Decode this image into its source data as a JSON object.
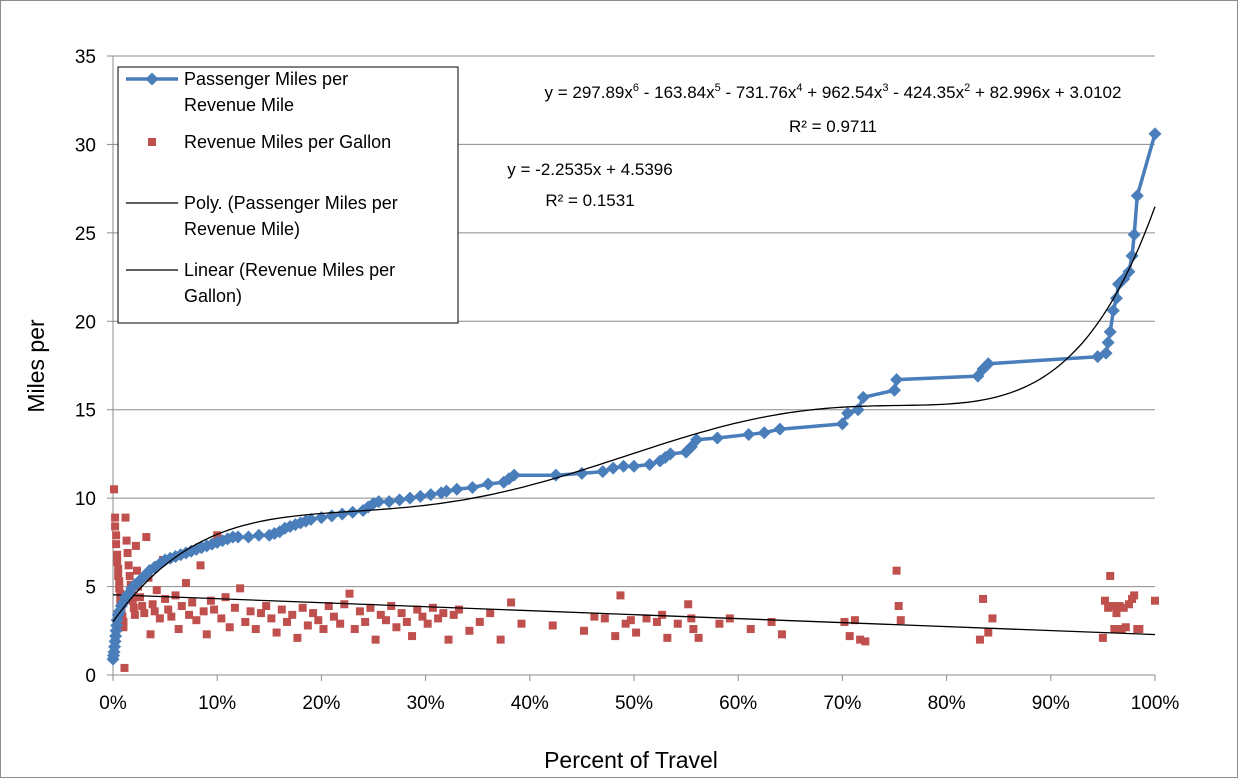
{
  "chart_data": {
    "type": "scatter",
    "title": "",
    "xlabel": "Percent of Travel",
    "ylabel": "Miles per",
    "xlim": [
      0,
      1
    ],
    "ylim": [
      0,
      35
    ],
    "x_ticks": [
      "0%",
      "10%",
      "20%",
      "30%",
      "40%",
      "50%",
      "60%",
      "70%",
      "80%",
      "90%",
      "100%"
    ],
    "y_ticks": [
      "0",
      "5",
      "10",
      "15",
      "20",
      "25",
      "30",
      "35"
    ],
    "grid": "horizontal",
    "legend_placement": "top-left",
    "legend": [
      {
        "lines": [
          "Passenger Miles per",
          "Revenue Mile"
        ],
        "marker": "diamond",
        "color": "#4a7ebb"
      },
      {
        "lines": [
          "Revenue Miles per Gallon"
        ],
        "marker": "square",
        "color": "#c0504d"
      },
      {
        "lines": [
          "Poly. (Passenger Miles per",
          "Revenue Mile)"
        ],
        "marker": "line",
        "color": "#000000"
      },
      {
        "lines": [
          "Linear (Revenue Miles per",
          "Gallon)"
        ],
        "marker": "line",
        "color": "#000000"
      }
    ],
    "annotations": {
      "poly_equation_parts": [
        {
          "t": "y = 297.89x"
        },
        {
          "t": "6",
          "sup": true
        },
        {
          "t": " - 163.84x"
        },
        {
          "t": "5",
          "sup": true
        },
        {
          "t": " - 731.76x"
        },
        {
          "t": "4",
          "sup": true
        },
        {
          "t": " + 962.54x"
        },
        {
          "t": "3",
          "sup": true
        },
        {
          "t": " - 424.35x"
        },
        {
          "t": "2",
          "sup": true
        },
        {
          "t": " + 82.996x + 3.0102"
        }
      ],
      "poly_r2": "R² = 0.9711",
      "linear_equation": "y = -2.2535x + 4.5396",
      "linear_r2": "R² = 0.1531"
    },
    "series": [
      {
        "name": "Passenger Miles per Revenue Mile",
        "type": "line-markers",
        "color": "#4a7ebb",
        "points": [
          [
            0.0,
            0.9
          ],
          [
            0.0005,
            1.1
          ],
          [
            0.001,
            1.3
          ],
          [
            0.0015,
            1.6
          ],
          [
            0.002,
            1.9
          ],
          [
            0.0025,
            2.2
          ],
          [
            0.003,
            2.5
          ],
          [
            0.0035,
            2.8
          ],
          [
            0.004,
            3.1
          ],
          [
            0.005,
            3.4
          ],
          [
            0.006,
            3.6
          ],
          [
            0.008,
            3.9
          ],
          [
            0.01,
            4.1
          ],
          [
            0.012,
            4.4
          ],
          [
            0.015,
            4.6
          ],
          [
            0.018,
            4.9
          ],
          [
            0.021,
            5.1
          ],
          [
            0.025,
            5.3
          ],
          [
            0.03,
            5.6
          ],
          [
            0.035,
            5.9
          ],
          [
            0.04,
            6.1
          ],
          [
            0.045,
            6.3
          ],
          [
            0.05,
            6.5
          ],
          [
            0.055,
            6.6
          ],
          [
            0.06,
            6.7
          ],
          [
            0.065,
            6.8
          ],
          [
            0.07,
            6.9
          ],
          [
            0.075,
            7.0
          ],
          [
            0.08,
            7.1
          ],
          [
            0.085,
            7.2
          ],
          [
            0.09,
            7.3
          ],
          [
            0.095,
            7.4
          ],
          [
            0.1,
            7.5
          ],
          [
            0.105,
            7.6
          ],
          [
            0.11,
            7.7
          ],
          [
            0.115,
            7.8
          ],
          [
            0.12,
            7.8
          ],
          [
            0.13,
            7.8
          ],
          [
            0.14,
            7.9
          ],
          [
            0.15,
            7.9
          ],
          [
            0.155,
            8.0
          ],
          [
            0.16,
            8.1
          ],
          [
            0.165,
            8.3
          ],
          [
            0.17,
            8.4
          ],
          [
            0.175,
            8.5
          ],
          [
            0.18,
            8.6
          ],
          [
            0.185,
            8.7
          ],
          [
            0.19,
            8.8
          ],
          [
            0.2,
            8.9
          ],
          [
            0.21,
            9.0
          ],
          [
            0.22,
            9.1
          ],
          [
            0.23,
            9.2
          ],
          [
            0.24,
            9.3
          ],
          [
            0.245,
            9.5
          ],
          [
            0.25,
            9.7
          ],
          [
            0.255,
            9.8
          ],
          [
            0.265,
            9.8
          ],
          [
            0.275,
            9.9
          ],
          [
            0.285,
            10.0
          ],
          [
            0.295,
            10.1
          ],
          [
            0.305,
            10.2
          ],
          [
            0.315,
            10.3
          ],
          [
            0.32,
            10.4
          ],
          [
            0.33,
            10.5
          ],
          [
            0.345,
            10.6
          ],
          [
            0.36,
            10.8
          ],
          [
            0.375,
            10.9
          ],
          [
            0.38,
            11.1
          ],
          [
            0.385,
            11.3
          ],
          [
            0.425,
            11.3
          ],
          [
            0.45,
            11.4
          ],
          [
            0.47,
            11.5
          ],
          [
            0.48,
            11.7
          ],
          [
            0.49,
            11.8
          ],
          [
            0.5,
            11.8
          ],
          [
            0.515,
            11.9
          ],
          [
            0.525,
            12.1
          ],
          [
            0.53,
            12.3
          ],
          [
            0.535,
            12.5
          ],
          [
            0.55,
            12.6
          ],
          [
            0.555,
            12.9
          ],
          [
            0.56,
            13.3
          ],
          [
            0.58,
            13.4
          ],
          [
            0.61,
            13.6
          ],
          [
            0.625,
            13.7
          ],
          [
            0.64,
            13.9
          ],
          [
            0.7,
            14.2
          ],
          [
            0.705,
            14.8
          ],
          [
            0.715,
            15.0
          ],
          [
            0.72,
            15.7
          ],
          [
            0.75,
            16.1
          ],
          [
            0.752,
            16.7
          ],
          [
            0.83,
            16.9
          ],
          [
            0.835,
            17.3
          ],
          [
            0.84,
            17.6
          ],
          [
            0.945,
            18.0
          ],
          [
            0.953,
            18.2
          ],
          [
            0.955,
            18.8
          ],
          [
            0.957,
            19.4
          ],
          [
            0.96,
            20.6
          ],
          [
            0.963,
            21.3
          ],
          [
            0.965,
            22.1
          ],
          [
            0.97,
            22.4
          ],
          [
            0.975,
            22.8
          ],
          [
            0.978,
            23.7
          ],
          [
            0.98,
            24.9
          ],
          [
            0.983,
            27.1
          ],
          [
            1.0,
            30.6
          ]
        ]
      },
      {
        "name": "Revenue Miles per Gallon",
        "type": "scatter",
        "color": "#c0504d",
        "points": [
          [
            0.001,
            10.5
          ],
          [
            0.002,
            8.9
          ],
          [
            0.002,
            8.4
          ],
          [
            0.003,
            7.9
          ],
          [
            0.003,
            7.4
          ],
          [
            0.004,
            6.8
          ],
          [
            0.004,
            6.4
          ],
          [
            0.005,
            6.0
          ],
          [
            0.005,
            5.6
          ],
          [
            0.006,
            5.3
          ],
          [
            0.006,
            4.9
          ],
          [
            0.007,
            4.6
          ],
          [
            0.007,
            4.2
          ],
          [
            0.008,
            3.9
          ],
          [
            0.008,
            3.6
          ],
          [
            0.009,
            3.3
          ],
          [
            0.01,
            3.0
          ],
          [
            0.01,
            2.7
          ],
          [
            0.011,
            0.4
          ],
          [
            0.012,
            8.9
          ],
          [
            0.013,
            7.6
          ],
          [
            0.014,
            6.9
          ],
          [
            0.015,
            6.2
          ],
          [
            0.016,
            5.6
          ],
          [
            0.017,
            5.1
          ],
          [
            0.018,
            4.6
          ],
          [
            0.019,
            4.2
          ],
          [
            0.02,
            3.8
          ],
          [
            0.021,
            3.4
          ],
          [
            0.022,
            7.3
          ],
          [
            0.023,
            5.9
          ],
          [
            0.024,
            5.0
          ],
          [
            0.026,
            4.4
          ],
          [
            0.028,
            3.9
          ],
          [
            0.03,
            3.5
          ],
          [
            0.032,
            7.8
          ],
          [
            0.034,
            5.5
          ],
          [
            0.036,
            2.3
          ],
          [
            0.038,
            4.0
          ],
          [
            0.04,
            3.6
          ],
          [
            0.042,
            4.8
          ],
          [
            0.045,
            3.2
          ],
          [
            0.048,
            6.5
          ],
          [
            0.05,
            4.3
          ],
          [
            0.053,
            3.7
          ],
          [
            0.056,
            3.3
          ],
          [
            0.06,
            4.5
          ],
          [
            0.063,
            2.6
          ],
          [
            0.066,
            3.9
          ],
          [
            0.07,
            5.2
          ],
          [
            0.073,
            3.4
          ],
          [
            0.076,
            4.1
          ],
          [
            0.08,
            3.1
          ],
          [
            0.084,
            6.2
          ],
          [
            0.087,
            3.6
          ],
          [
            0.09,
            2.3
          ],
          [
            0.094,
            4.2
          ],
          [
            0.097,
            3.7
          ],
          [
            0.1,
            7.9
          ],
          [
            0.104,
            3.2
          ],
          [
            0.108,
            4.4
          ],
          [
            0.112,
            2.7
          ],
          [
            0.117,
            3.8
          ],
          [
            0.122,
            4.9
          ],
          [
            0.127,
            3.0
          ],
          [
            0.132,
            3.6
          ],
          [
            0.137,
            2.6
          ],
          [
            0.142,
            3.5
          ],
          [
            0.147,
            3.9
          ],
          [
            0.152,
            3.2
          ],
          [
            0.157,
            2.4
          ],
          [
            0.162,
            3.7
          ],
          [
            0.167,
            3.0
          ],
          [
            0.172,
            3.4
          ],
          [
            0.177,
            2.1
          ],
          [
            0.182,
            3.8
          ],
          [
            0.187,
            2.8
          ],
          [
            0.192,
            3.5
          ],
          [
            0.197,
            3.1
          ],
          [
            0.202,
            2.6
          ],
          [
            0.207,
            3.9
          ],
          [
            0.212,
            3.3
          ],
          [
            0.218,
            2.9
          ],
          [
            0.222,
            4.0
          ],
          [
            0.227,
            4.6
          ],
          [
            0.232,
            2.6
          ],
          [
            0.237,
            3.6
          ],
          [
            0.242,
            3.0
          ],
          [
            0.247,
            3.8
          ],
          [
            0.252,
            2.0
          ],
          [
            0.257,
            3.4
          ],
          [
            0.262,
            3.1
          ],
          [
            0.267,
            3.9
          ],
          [
            0.272,
            2.7
          ],
          [
            0.277,
            3.5
          ],
          [
            0.282,
            3.0
          ],
          [
            0.287,
            2.2
          ],
          [
            0.292,
            3.7
          ],
          [
            0.297,
            3.3
          ],
          [
            0.302,
            2.9
          ],
          [
            0.307,
            3.8
          ],
          [
            0.312,
            3.2
          ],
          [
            0.317,
            3.5
          ],
          [
            0.322,
            2.0
          ],
          [
            0.327,
            3.4
          ],
          [
            0.332,
            3.7
          ],
          [
            0.342,
            2.5
          ],
          [
            0.352,
            3.0
          ],
          [
            0.362,
            3.5
          ],
          [
            0.372,
            2.0
          ],
          [
            0.382,
            4.1
          ],
          [
            0.392,
            2.9
          ],
          [
            0.422,
            2.8
          ],
          [
            0.452,
            2.5
          ],
          [
            0.462,
            3.3
          ],
          [
            0.472,
            3.2
          ],
          [
            0.482,
            2.2
          ],
          [
            0.487,
            4.5
          ],
          [
            0.492,
            2.9
          ],
          [
            0.497,
            3.1
          ],
          [
            0.502,
            2.4
          ],
          [
            0.512,
            3.2
          ],
          [
            0.522,
            3.0
          ],
          [
            0.527,
            3.4
          ],
          [
            0.532,
            2.1
          ],
          [
            0.542,
            2.9
          ],
          [
            0.552,
            4.0
          ],
          [
            0.555,
            3.2
          ],
          [
            0.557,
            2.6
          ],
          [
            0.562,
            2.1
          ],
          [
            0.582,
            2.9
          ],
          [
            0.592,
            3.2
          ],
          [
            0.612,
            2.6
          ],
          [
            0.632,
            3.0
          ],
          [
            0.642,
            2.3
          ],
          [
            0.702,
            3.0
          ],
          [
            0.707,
            2.2
          ],
          [
            0.712,
            3.1
          ],
          [
            0.717,
            2.0
          ],
          [
            0.722,
            1.9
          ],
          [
            0.752,
            5.9
          ],
          [
            0.754,
            3.9
          ],
          [
            0.756,
            3.1
          ],
          [
            0.832,
            2.0
          ],
          [
            0.835,
            4.3
          ],
          [
            0.84,
            2.4
          ],
          [
            0.844,
            3.2
          ],
          [
            0.95,
            2.1
          ],
          [
            0.952,
            4.2
          ],
          [
            0.955,
            3.8
          ],
          [
            0.957,
            5.6
          ],
          [
            0.959,
            3.9
          ],
          [
            0.961,
            2.6
          ],
          [
            0.963,
            3.5
          ],
          [
            0.966,
            3.9
          ],
          [
            0.968,
            2.6
          ],
          [
            0.97,
            3.8
          ],
          [
            0.972,
            2.7
          ],
          [
            0.975,
            4.0
          ],
          [
            0.978,
            4.3
          ],
          [
            0.98,
            4.5
          ],
          [
            0.983,
            2.6
          ],
          [
            0.985,
            2.6
          ],
          [
            1.0,
            4.2
          ]
        ]
      },
      {
        "name": "Poly. (Passenger Miles per Revenue Mile)",
        "type": "trendline-poly",
        "color": "#000000",
        "coefficients": [
          3.0102,
          82.996,
          -424.35,
          962.54,
          -731.76,
          -163.84,
          297.89
        ]
      },
      {
        "name": "Linear (Revenue Miles per Gallon)",
        "type": "trendline-linear",
        "color": "#000000",
        "coefficients": [
          4.5396,
          -2.2535
        ]
      }
    ]
  }
}
